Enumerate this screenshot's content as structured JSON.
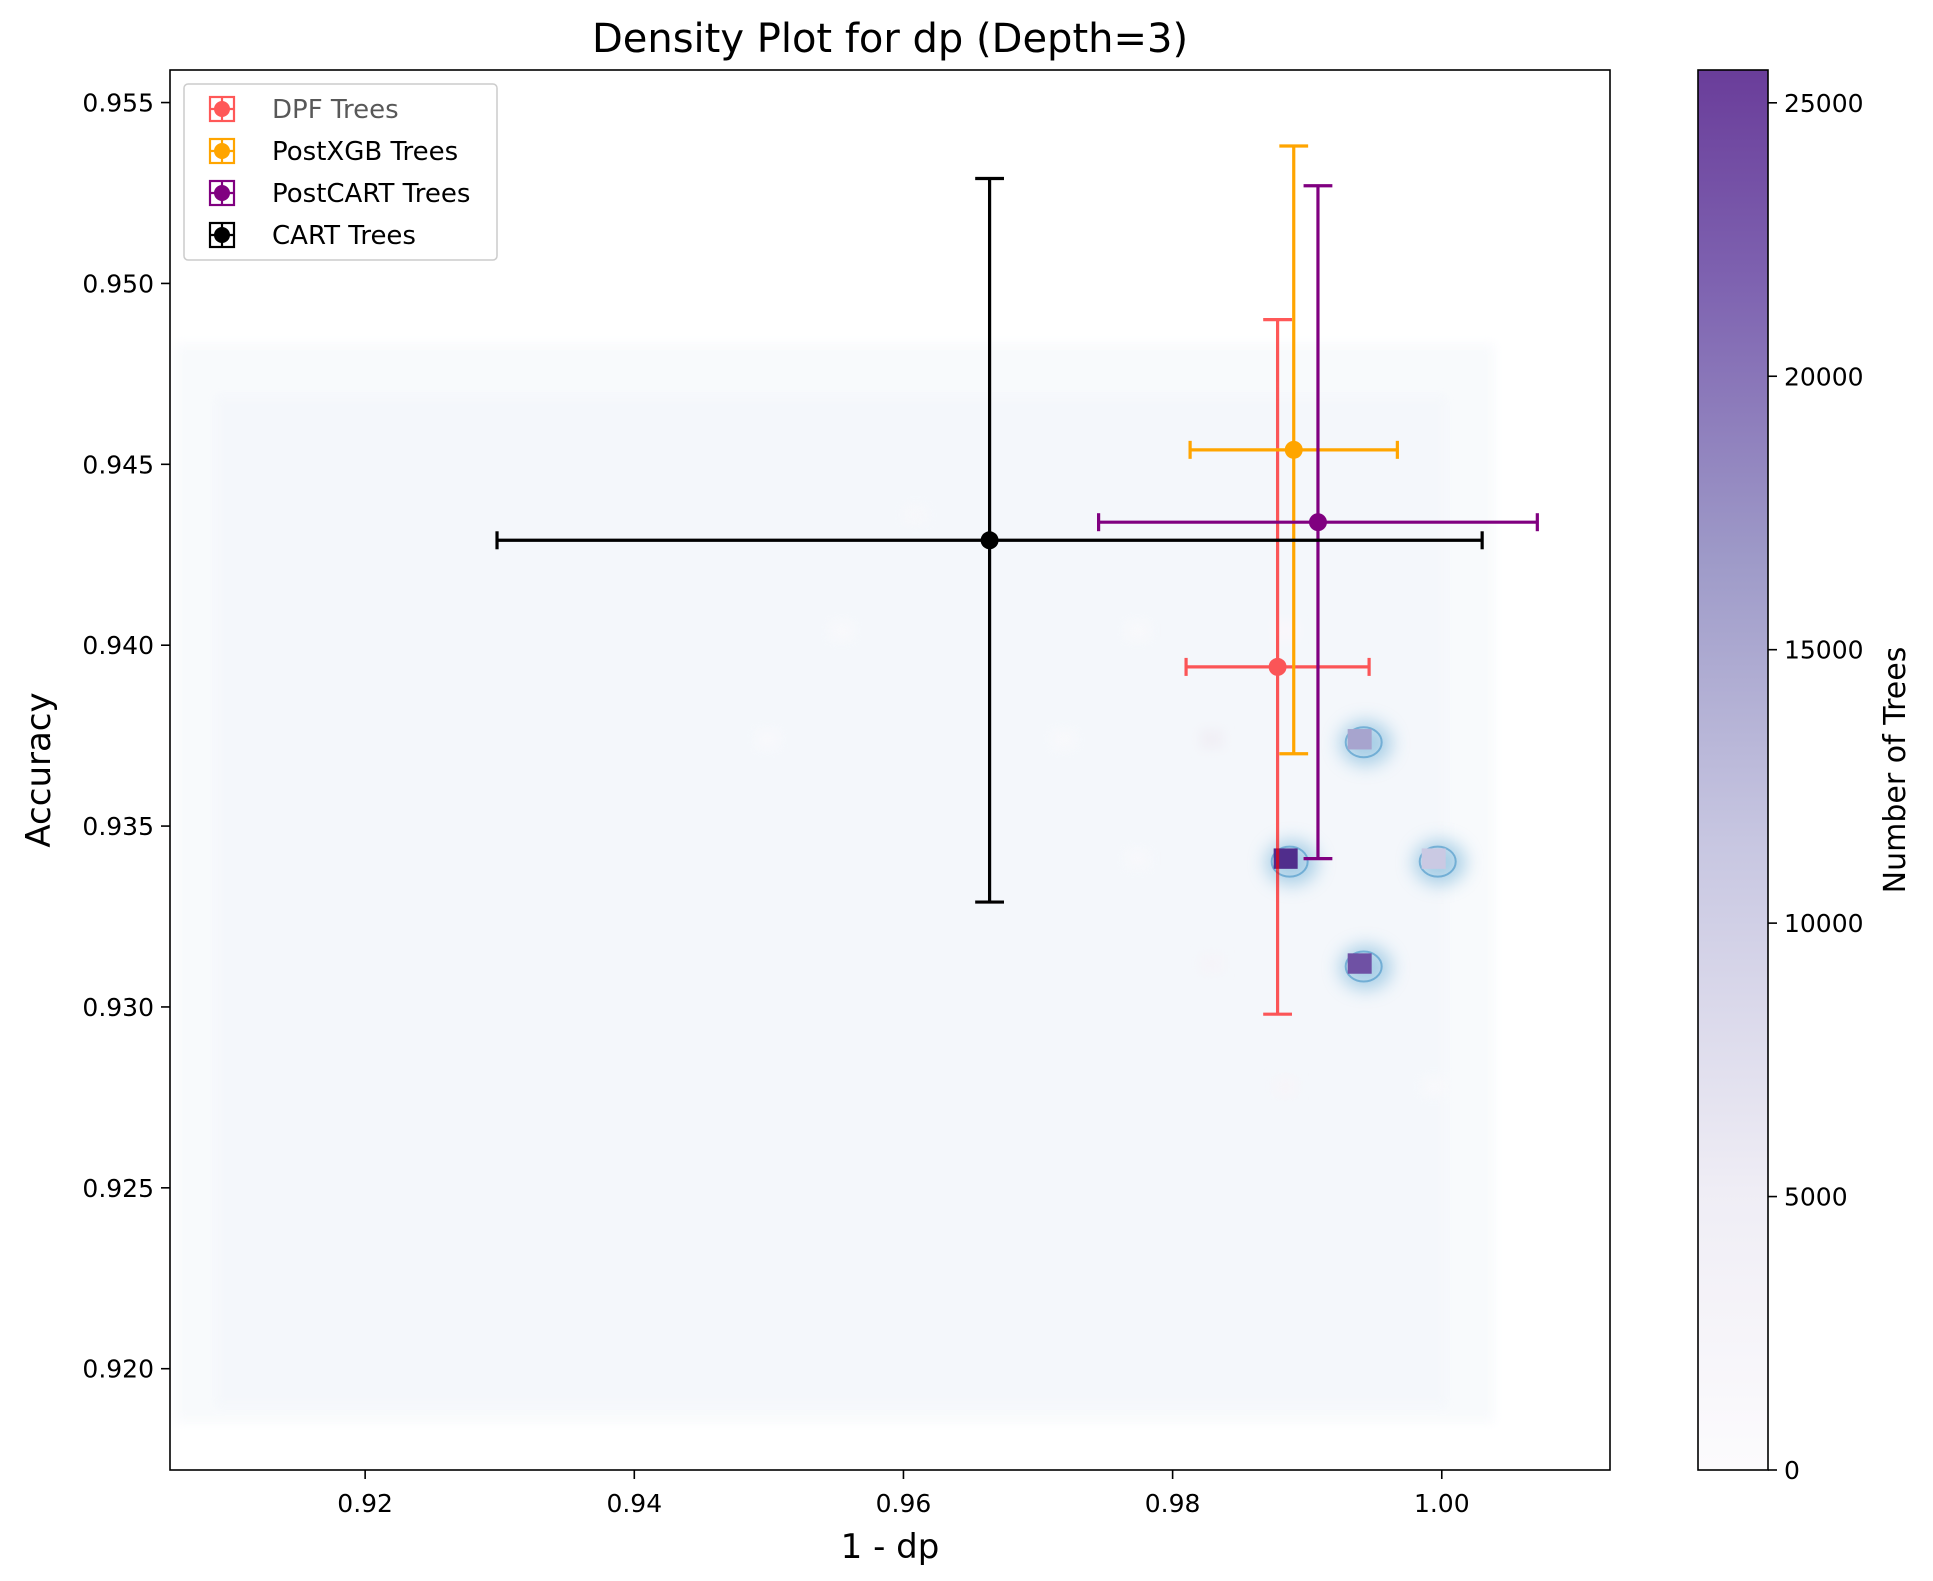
{
  "chart_data": {
    "type": "scatter",
    "title": "Density Plot for dp (Depth=3)",
    "xlabel": "1 - dp",
    "ylabel": "Accuracy",
    "xlim": [
      0.9055,
      1.0125
    ],
    "ylim": [
      0.9172,
      0.9559
    ],
    "x_ticks": [
      "0.92",
      "0.94",
      "0.96",
      "0.98",
      "1.00"
    ],
    "x_tick_values": [
      0.92,
      0.94,
      0.96,
      0.98,
      1.0
    ],
    "y_ticks": [
      "0.920",
      "0.925",
      "0.930",
      "0.935",
      "0.940",
      "0.945",
      "0.950",
      "0.955"
    ],
    "y_tick_values": [
      0.92,
      0.925,
      0.93,
      0.935,
      0.94,
      0.945,
      0.95,
      0.955
    ],
    "grid": false,
    "legend_position": "top-left",
    "series": [
      {
        "name": "DPF Trees",
        "color": "#ff0000",
        "alpha": 0.65,
        "x": 0.9878,
        "y": 0.9394,
        "xerr": 0.0068,
        "yerr": 0.0096
      },
      {
        "name": "PostXGB Trees",
        "color": "#ffa500",
        "alpha": 1.0,
        "x": 0.989,
        "y": 0.9454,
        "xerr": 0.0077,
        "yerr": 0.0084
      },
      {
        "name": "PostCART Trees",
        "color": "#800080",
        "alpha": 1.0,
        "x": 0.9908,
        "y": 0.9434,
        "xerr": 0.0163,
        "yerr": 0.0093
      },
      {
        "name": "CART Trees",
        "color": "#000000",
        "alpha": 1.0,
        "x": 0.9664,
        "y": 0.9429,
        "xerr": 0.0366,
        "yerr": 0.01
      }
    ],
    "density_cells": [
      {
        "x": 0.9884,
        "y": 0.9341,
        "value": 25600
      },
      {
        "x": 0.9939,
        "y": 0.9312,
        "value": 23000
      },
      {
        "x": 0.9939,
        "y": 0.9374,
        "value": 15500
      },
      {
        "x": 0.9994,
        "y": 0.9341,
        "value": 11000
      },
      {
        "x": 0.9829,
        "y": 0.9374,
        "value": 4200
      },
      {
        "x": 0.9829,
        "y": 0.9312,
        "value": 2600
      },
      {
        "x": 0.9884,
        "y": 0.9278,
        "value": 2300
      },
      {
        "x": 0.9884,
        "y": 0.9404,
        "value": 1300
      },
      {
        "x": 0.9609,
        "y": 0.9436,
        "value": 1200
      },
      {
        "x": 0.9774,
        "y": 0.9341,
        "value": 900
      },
      {
        "x": 0.9554,
        "y": 0.9404,
        "value": 500
      },
      {
        "x": 0.9774,
        "y": 0.9404,
        "value": 500
      },
      {
        "x": 0.9719,
        "y": 0.9374,
        "value": 350
      },
      {
        "x": 0.9499,
        "y": 0.9374,
        "value": 300
      },
      {
        "x": 0.9994,
        "y": 0.9278,
        "value": 350
      }
    ],
    "colorbar": {
      "label": "Number of Trees",
      "min": 0,
      "max": 25600,
      "cmap_low": "#fcfbfd",
      "cmap_high": "#6a3d9a",
      "ticks": [
        "0",
        "5000",
        "10000",
        "15000",
        "20000",
        "25000"
      ],
      "tick_values": [
        0,
        5000,
        10000,
        15000,
        20000,
        25000
      ]
    }
  }
}
